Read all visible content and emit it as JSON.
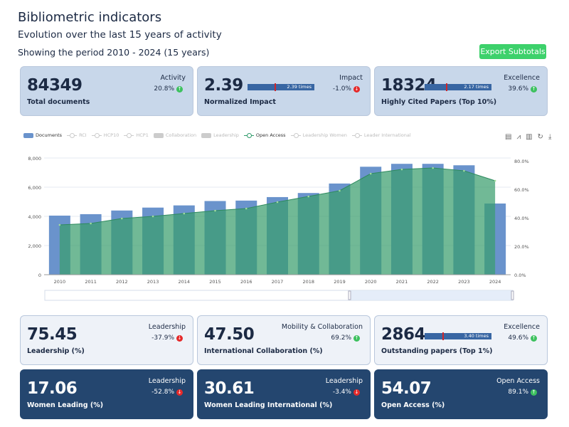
{
  "header": {
    "title": "Bibliometric indicators",
    "subtitle": "Evolution over the last 15 years of activity",
    "period": "Showing the period 2010 - 2024 (15 years)",
    "export_label": "Export Subtotals"
  },
  "cards": [
    {
      "value": "84349",
      "label": "Total documents",
      "category": "Activity",
      "change": "20.8%",
      "trend": "up",
      "style": "mid"
    },
    {
      "value": "2.39",
      "label": "Normalized Impact",
      "category": "Impact",
      "change": "-1.0%",
      "trend": "down",
      "style": "mid",
      "bar_text": "2.39 times"
    },
    {
      "value": "18324",
      "label": "Highly Cited Papers (Top 10%)",
      "category": "Excellence",
      "change": "39.6%",
      "trend": "up",
      "style": "mid",
      "bar_text": "2.17 times"
    },
    {
      "value": "75.45",
      "label": "Leadership (%)",
      "category": "Leadership",
      "change": "-37.9%",
      "trend": "down",
      "style": "light"
    },
    {
      "value": "47.50",
      "label": "International Collaboration (%)",
      "category": "Mobility & Collaboration",
      "change": "69.2%",
      "trend": "up",
      "style": "light"
    },
    {
      "value": "2864",
      "label": "Outstanding papers (Top 1%)",
      "category": "Excellence",
      "change": "49.6%",
      "trend": "up",
      "style": "light",
      "bar_text": "3.40 times"
    },
    {
      "value": "17.06",
      "label": "Women Leading (%)",
      "category": "Leadership",
      "change": "-52.8%",
      "trend": "down",
      "style": "dark"
    },
    {
      "value": "30.61",
      "label": "Women Leading International (%)",
      "category": "Leadership",
      "change": "-3.4%",
      "trend": "down",
      "style": "dark"
    },
    {
      "value": "54.07",
      "label": "Open Access (%)",
      "category": "Open Access",
      "change": "89.1%",
      "trend": "up",
      "style": "dark"
    }
  ],
  "legend": [
    {
      "name": "Documents",
      "kind": "bar",
      "active": true,
      "color": "#6a93cc"
    },
    {
      "name": "RCI",
      "kind": "line",
      "active": false
    },
    {
      "name": "HCP10",
      "kind": "line",
      "active": false
    },
    {
      "name": "HCP1",
      "kind": "line",
      "active": false
    },
    {
      "name": "Collaboration",
      "kind": "bar",
      "active": false
    },
    {
      "name": "Leadership",
      "kind": "bar",
      "active": false
    },
    {
      "name": "Open Access",
      "kind": "line",
      "active": true,
      "color": "#2e9a6a"
    },
    {
      "name": "Leadership Women",
      "kind": "line",
      "active": false
    },
    {
      "name": "Leader International",
      "kind": "line",
      "active": false
    }
  ],
  "toolbox_icons": [
    "data-view-icon",
    "line-chart-icon",
    "bar-chart-icon",
    "restore-icon",
    "download-icon"
  ],
  "chart_data": {
    "type": "bar",
    "categories": [
      "2010",
      "2011",
      "2012",
      "2013",
      "2014",
      "2015",
      "2016",
      "2017",
      "2018",
      "2019",
      "2020",
      "2021",
      "2022",
      "2023",
      "2024"
    ],
    "series": [
      {
        "name": "Documents",
        "type": "bar",
        "axis": "left",
        "values": [
          4050,
          4150,
          4400,
          4600,
          4750,
          5050,
          5080,
          5320,
          5600,
          6250,
          7400,
          7600,
          7600,
          7500,
          4880
        ]
      },
      {
        "name": "Open Access",
        "type": "area",
        "axis": "right",
        "values": [
          35,
          36,
          39.5,
          41,
          43,
          45,
          46.5,
          51,
          55,
          59,
          71,
          74,
          75,
          73,
          66
        ]
      }
    ],
    "y_left": {
      "ticks": [
        "0",
        "2,000",
        "4,000",
        "6,000",
        "8,000"
      ],
      "range": [
        0,
        8000
      ]
    },
    "y_right": {
      "ticks": [
        "0.0%",
        "20.0%",
        "40.0%",
        "60.0%",
        "80.0%"
      ],
      "range": [
        0,
        80
      ]
    },
    "grid": true,
    "legend_position": "top-left",
    "zoom_slider": true
  }
}
